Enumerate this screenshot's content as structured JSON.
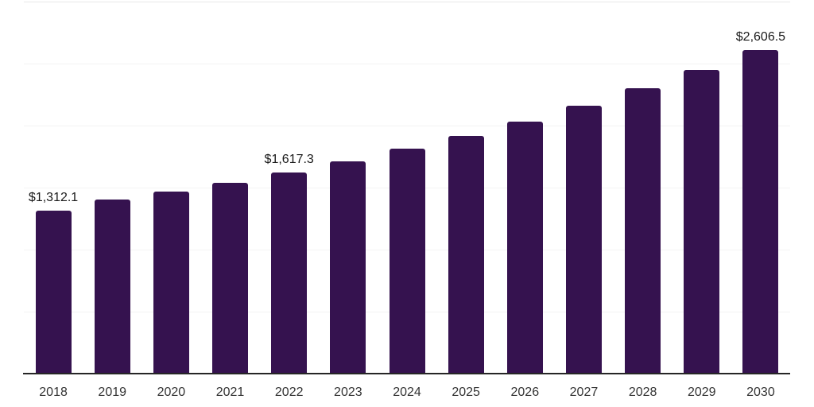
{
  "chart_data": {
    "type": "bar",
    "title": "",
    "xlabel": "",
    "ylabel": "",
    "categories": [
      "2018",
      "2019",
      "2020",
      "2021",
      "2022",
      "2023",
      "2024",
      "2025",
      "2026",
      "2027",
      "2028",
      "2029",
      "2030"
    ],
    "values": [
      1312.1,
      1400.9,
      1465.0,
      1535.1,
      1617.3,
      1710.4,
      1810.6,
      1915.4,
      2032.4,
      2158.6,
      2301.4,
      2446.6,
      2606.5
    ],
    "point_labels": [
      "$1,312.1",
      "",
      "",
      "",
      "$1,617.3",
      "",
      "",
      "",
      "",
      "",
      "",
      "",
      "$2,606.5"
    ],
    "ylim": [
      0,
      3000
    ],
    "gridline_interval": 500,
    "grid": "horizontal",
    "y_tick_labels_visible": false,
    "legend": "none",
    "bar_color": "#35124F",
    "axis_color": "#262626",
    "gridline_color": "#f3f3f3",
    "top_gridline_color": "#e9e9e9",
    "value_label_color": "#1a1a1a",
    "tick_label_color": "#333333"
  }
}
